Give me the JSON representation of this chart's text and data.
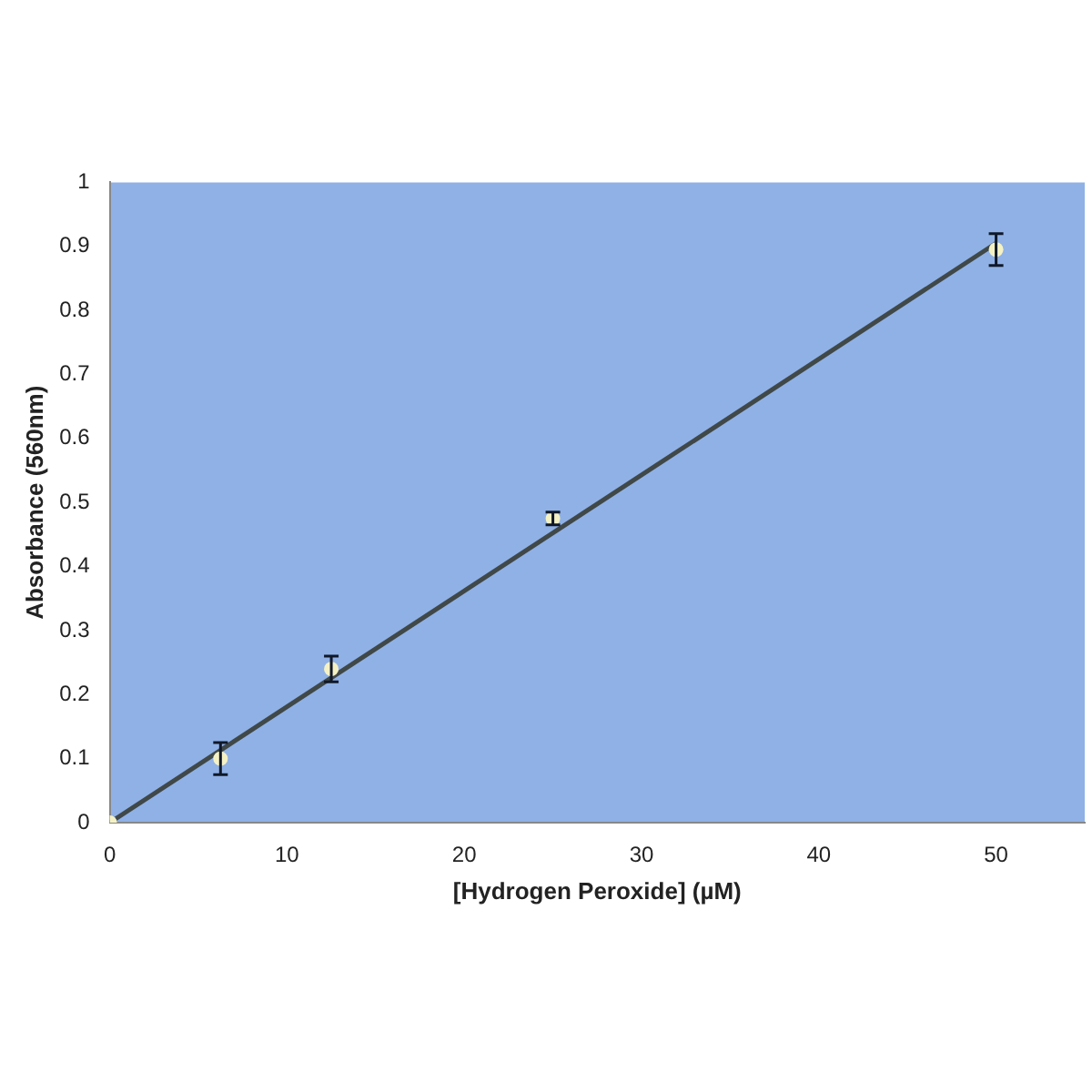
{
  "chart_data": {
    "type": "scatter",
    "xlabel": "[Hydrogen Peroxide] (µM)",
    "ylabel": "Absorbance (560nm)",
    "series": [
      {
        "color": "#f4f1c4",
        "marker": "circle",
        "x": [
          0,
          6.25,
          12.5,
          25,
          50
        ],
        "values": [
          0,
          0.1,
          0.24,
          0.475,
          0.895
        ],
        "errors": [
          null,
          0.025,
          0.02,
          0.01,
          0.025
        ]
      },
      {
        "type": "line",
        "marker": "none",
        "color": "#404848",
        "x": [
          0,
          50
        ],
        "values": [
          0,
          0.905
        ]
      }
    ],
    "xlim": [
      0,
      55
    ],
    "xticks": [
      0,
      10,
      20,
      30,
      40,
      50
    ],
    "ylim": [
      0,
      1
    ],
    "yticks": [
      0,
      0.1,
      0.2,
      0.3,
      0.4,
      0.5,
      0.6,
      0.7,
      0.8,
      0.9,
      1
    ],
    "grid": false,
    "legend": false
  }
}
